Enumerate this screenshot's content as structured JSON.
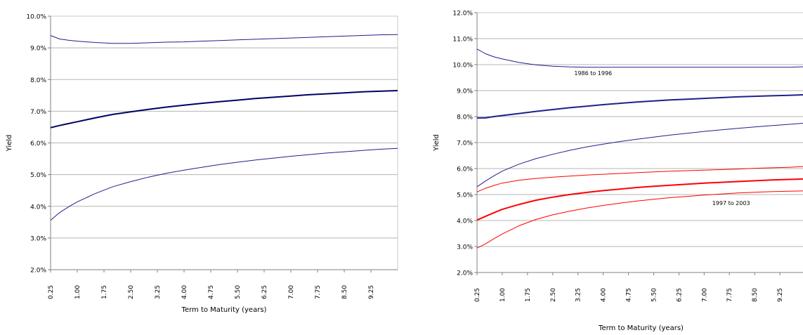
{
  "chart_data": [
    {
      "type": "line",
      "xlabel": "Term to Maturity (years)",
      "ylabel": "Yield",
      "ylim": [
        2.0,
        10.0
      ],
      "yticks": [
        "2.0%",
        "3.0%",
        "4.0%",
        "5.0%",
        "6.0%",
        "7.0%",
        "8.0%",
        "9.0%",
        "10.0%"
      ],
      "xticks": [
        "0.25",
        "1.00",
        "1.75",
        "2.50",
        "3.25",
        "4.00",
        "4.75",
        "5.50",
        "6.25",
        "7.00",
        "7.75",
        "8.50",
        "9.25"
      ],
      "xrange": [
        0.25,
        10.0
      ],
      "grid": true,
      "series": [
        {
          "color": "#1f1f8f",
          "width": 1,
          "x": [
            0.25,
            0.5,
            0.75,
            1.0,
            1.5,
            2.0,
            2.5,
            3.0,
            3.5,
            4.0,
            4.5,
            5.0,
            5.5,
            6.0,
            6.5,
            7.0,
            7.5,
            8.0,
            8.5,
            9.0,
            9.5,
            10.0
          ],
          "y": [
            9.39,
            9.28,
            9.24,
            9.21,
            9.17,
            9.14,
            9.14,
            9.16,
            9.18,
            9.19,
            9.21,
            9.23,
            9.25,
            9.27,
            9.29,
            9.31,
            9.33,
            9.35,
            9.37,
            9.39,
            9.41,
            9.42
          ]
        },
        {
          "color": "#000066",
          "width": 2,
          "x": [
            0.25,
            0.5,
            0.75,
            1.0,
            1.5,
            2.0,
            2.5,
            3.0,
            3.5,
            4.0,
            4.5,
            5.0,
            5.5,
            6.0,
            6.5,
            7.0,
            7.5,
            8.0,
            8.5,
            9.0,
            9.5,
            10.0
          ],
          "y": [
            6.48,
            6.55,
            6.61,
            6.67,
            6.79,
            6.9,
            6.98,
            7.06,
            7.13,
            7.19,
            7.25,
            7.3,
            7.35,
            7.4,
            7.44,
            7.48,
            7.52,
            7.55,
            7.58,
            7.61,
            7.63,
            7.65
          ]
        },
        {
          "color": "#1f1f8f",
          "width": 1,
          "x": [
            0.25,
            0.5,
            0.75,
            1.0,
            1.5,
            2.0,
            2.5,
            3.0,
            3.5,
            4.0,
            4.5,
            5.0,
            5.5,
            6.0,
            6.5,
            7.0,
            7.5,
            8.0,
            8.5,
            9.0,
            9.5,
            10.0
          ],
          "y": [
            3.56,
            3.8,
            3.98,
            4.14,
            4.4,
            4.62,
            4.78,
            4.92,
            5.04,
            5.14,
            5.23,
            5.32,
            5.39,
            5.46,
            5.52,
            5.58,
            5.63,
            5.68,
            5.72,
            5.76,
            5.8,
            5.83
          ]
        }
      ]
    },
    {
      "type": "line",
      "xlabel": "Term to Maturity (years)",
      "ylabel": "Yield",
      "ylim": [
        2.0,
        12.0
      ],
      "yticks": [
        "2.0%",
        "3.0%",
        "4.0%",
        "5.0%",
        "6.0%",
        "7.0%",
        "8.0%",
        "9.0%",
        "10.0%",
        "11.0%",
        "12.0%"
      ],
      "xticks": [
        "0.25",
        "1.00",
        "1.75",
        "2.50",
        "3.25",
        "4.00",
        "4.75",
        "5.50",
        "6.25",
        "7.00",
        "7.75",
        "8.50",
        "9.25"
      ],
      "xrange": [
        0.25,
        10.0
      ],
      "grid": true,
      "annotations": [
        {
          "text": "1986 to 1996",
          "x": 3.7,
          "y": 9.6
        },
        {
          "text": "1997 to 2003",
          "x": 7.8,
          "y": 4.6
        }
      ],
      "series": [
        {
          "color": "#1f1f8f",
          "width": 1,
          "x": [
            0.25,
            0.5,
            0.75,
            1.0,
            1.5,
            2.0,
            2.5,
            3.0,
            3.5,
            4.0,
            4.5,
            5.0,
            5.5,
            6.0,
            6.5,
            7.0,
            7.5,
            8.0,
            8.5,
            9.0,
            9.5,
            10.0
          ],
          "y": [
            10.6,
            10.42,
            10.3,
            10.22,
            10.08,
            9.99,
            9.94,
            9.91,
            9.9,
            9.9,
            9.9,
            9.9,
            9.9,
            9.9,
            9.9,
            9.9,
            9.9,
            9.9,
            9.9,
            9.9,
            9.9,
            9.92
          ]
        },
        {
          "color": "#1f1f8f",
          "width": 2,
          "x": [
            0.25,
            0.5,
            0.75,
            1.0,
            1.5,
            2.0,
            2.5,
            3.0,
            3.5,
            4.0,
            4.5,
            5.0,
            5.5,
            6.0,
            6.5,
            7.0,
            7.5,
            8.0,
            8.5,
            9.0,
            9.5,
            10.0
          ],
          "y": [
            7.95,
            7.95,
            8.0,
            8.04,
            8.12,
            8.2,
            8.27,
            8.34,
            8.4,
            8.46,
            8.51,
            8.56,
            8.6,
            8.64,
            8.67,
            8.7,
            8.73,
            8.76,
            8.78,
            8.8,
            8.82,
            8.84
          ]
        },
        {
          "color": "#1f1f8f",
          "width": 1,
          "x": [
            0.25,
            0.5,
            0.75,
            1.0,
            1.5,
            2.0,
            2.5,
            3.0,
            3.5,
            4.0,
            4.5,
            5.0,
            5.5,
            6.0,
            6.5,
            7.0,
            7.5,
            8.0,
            8.5,
            9.0,
            9.5,
            10.0
          ],
          "y": [
            5.3,
            5.52,
            5.72,
            5.9,
            6.17,
            6.38,
            6.55,
            6.7,
            6.83,
            6.94,
            7.04,
            7.13,
            7.21,
            7.29,
            7.36,
            7.43,
            7.49,
            7.55,
            7.6,
            7.65,
            7.7,
            7.75
          ]
        },
        {
          "color": "#ff0000",
          "width": 1,
          "x": [
            0.25,
            0.5,
            0.75,
            1.0,
            1.5,
            2.0,
            2.5,
            3.0,
            3.5,
            4.0,
            4.5,
            5.0,
            5.5,
            6.0,
            6.5,
            7.0,
            7.5,
            8.0,
            8.5,
            9.0,
            9.5,
            10.0
          ],
          "y": [
            5.1,
            5.24,
            5.35,
            5.44,
            5.55,
            5.62,
            5.67,
            5.71,
            5.75,
            5.78,
            5.81,
            5.84,
            5.87,
            5.9,
            5.92,
            5.94,
            5.96,
            5.98,
            6.01,
            6.03,
            6.05,
            6.08
          ]
        },
        {
          "color": "#ff0000",
          "width": 2,
          "x": [
            0.25,
            0.5,
            0.75,
            1.0,
            1.5,
            2.0,
            2.5,
            3.0,
            3.5,
            4.0,
            4.5,
            5.0,
            5.5,
            6.0,
            6.5,
            7.0,
            7.5,
            8.0,
            8.5,
            9.0,
            9.5,
            10.0
          ],
          "y": [
            4.02,
            4.16,
            4.3,
            4.43,
            4.62,
            4.78,
            4.9,
            5.0,
            5.08,
            5.15,
            5.21,
            5.27,
            5.32,
            5.36,
            5.4,
            5.44,
            5.47,
            5.5,
            5.53,
            5.56,
            5.58,
            5.6
          ]
        },
        {
          "color": "#ff0000",
          "width": 1,
          "x": [
            0.25,
            0.5,
            0.75,
            1.0,
            1.5,
            2.0,
            2.5,
            3.0,
            3.5,
            4.0,
            4.5,
            5.0,
            5.5,
            6.0,
            6.5,
            7.0,
            7.5,
            8.0,
            8.5,
            9.0,
            9.5,
            10.0
          ],
          "y": [
            2.94,
            3.1,
            3.3,
            3.48,
            3.8,
            4.04,
            4.22,
            4.36,
            4.48,
            4.58,
            4.67,
            4.75,
            4.82,
            4.88,
            4.93,
            4.98,
            5.02,
            5.06,
            5.09,
            5.11,
            5.13,
            5.14
          ]
        }
      ]
    }
  ]
}
